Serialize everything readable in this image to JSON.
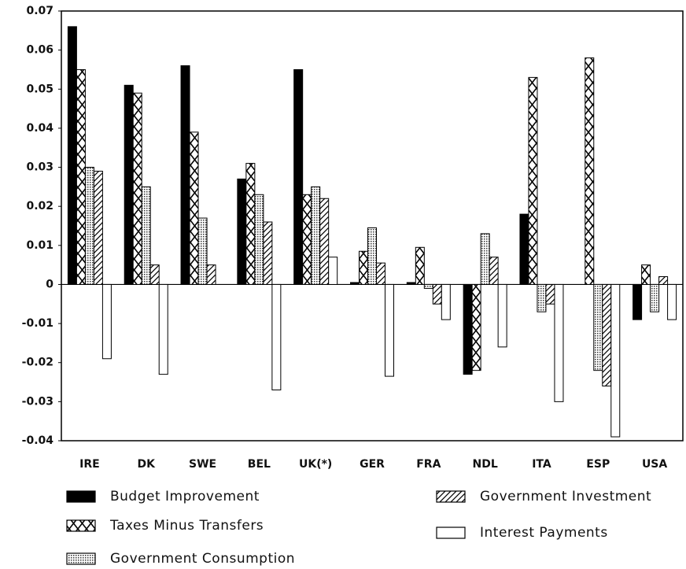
{
  "chart_data": {
    "type": "bar",
    "categories": [
      "IRE",
      "DK",
      "SWE",
      "BEL",
      "UK(*)",
      "GER",
      "FRA",
      "NDL",
      "ITA",
      "ESP",
      "USA"
    ],
    "series": [
      {
        "name": "Budget Improvement",
        "color": "#000000",
        "pattern": "solid",
        "values": [
          0.066,
          0.051,
          0.056,
          0.027,
          0.055,
          0.0005,
          0.0005,
          -0.023,
          0.018,
          0,
          -0.009
        ]
      },
      {
        "name": "Taxes Minus Transfers",
        "color": "#000000",
        "pattern": "crosshatch",
        "values": [
          0.055,
          0.049,
          0.039,
          0.031,
          0.023,
          0.0085,
          0.0095,
          -0.022,
          0.053,
          0.058,
          0.005
        ]
      },
      {
        "name": "Government Consumption",
        "color": "#000000",
        "pattern": "dots",
        "values": [
          0.03,
          0.025,
          0.017,
          0.023,
          0.025,
          0.0145,
          -0.001,
          0.013,
          -0.007,
          -0.022,
          -0.007
        ]
      },
      {
        "name": "Government Investment",
        "color": "#000000",
        "pattern": "diagonal",
        "values": [
          0.029,
          0.005,
          0.005,
          0.016,
          0.022,
          0.0055,
          -0.005,
          0.007,
          -0.005,
          -0.026,
          0.002
        ]
      },
      {
        "name": "Interest Payments",
        "color": "#000000",
        "pattern": "empty",
        "values": [
          -0.019,
          -0.023,
          0,
          -0.027,
          0.007,
          -0.0235,
          -0.009,
          -0.016,
          -0.03,
          -0.039,
          -0.009
        ]
      }
    ],
    "ylim": [
      -0.04,
      0.07
    ],
    "yticks": [
      -0.04,
      -0.03,
      -0.02,
      -0.01,
      0,
      0.01,
      0.02,
      0.03,
      0.04,
      0.05,
      0.06,
      0.07
    ],
    "grid": false
  }
}
